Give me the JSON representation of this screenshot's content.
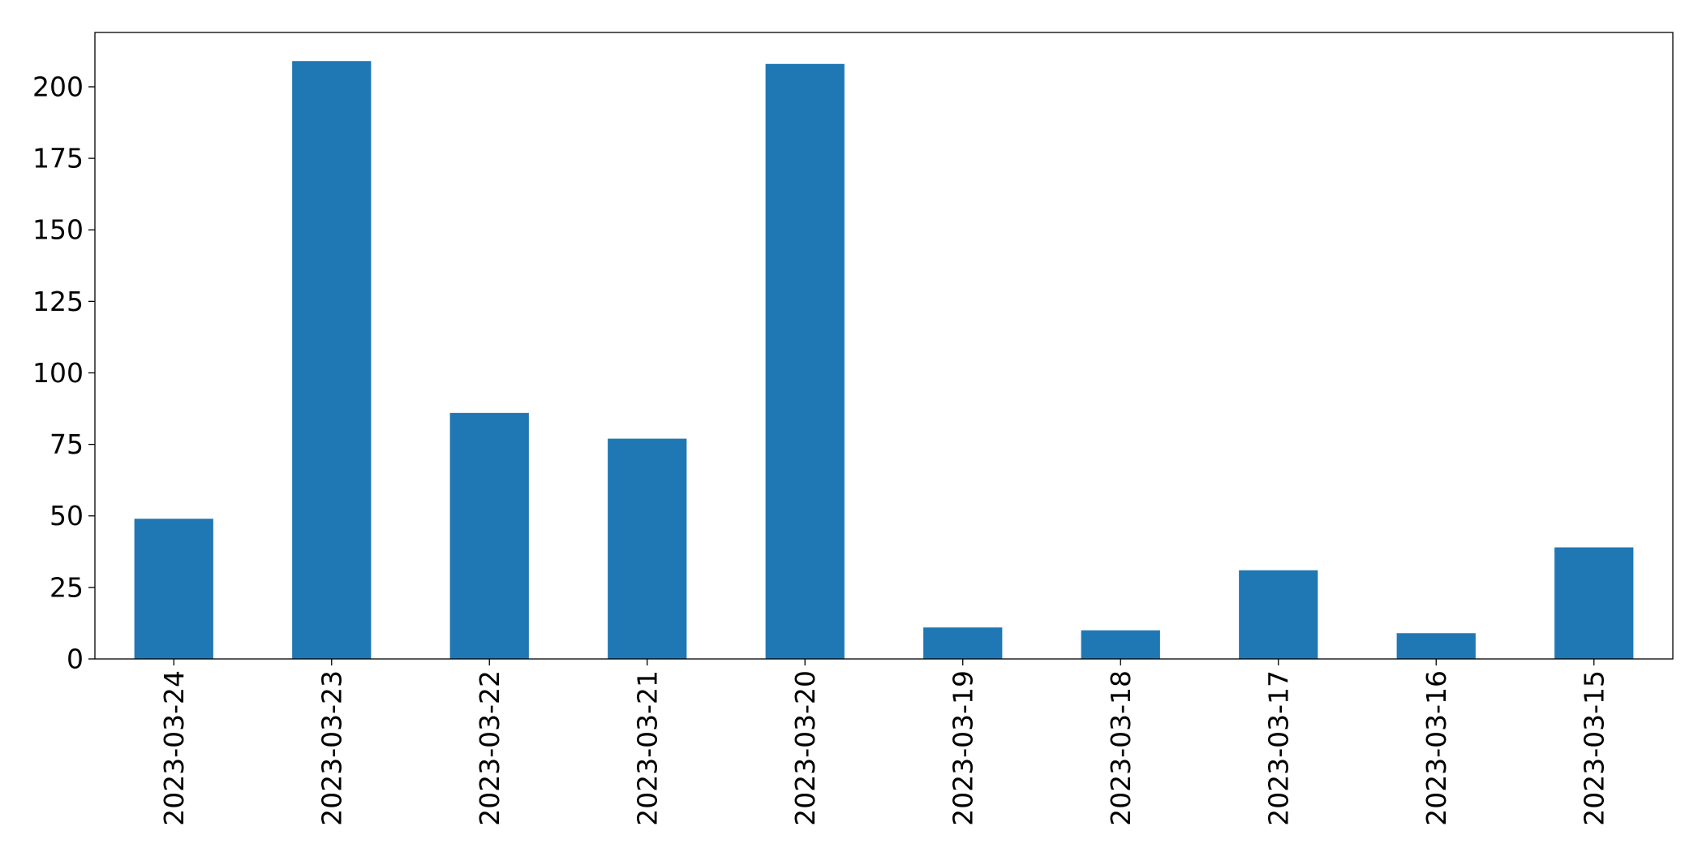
{
  "chart_data": {
    "type": "bar",
    "categories": [
      "2023-03-24",
      "2023-03-23",
      "2023-03-22",
      "2023-03-21",
      "2023-03-20",
      "2023-03-19",
      "2023-03-18",
      "2023-03-17",
      "2023-03-16",
      "2023-03-15"
    ],
    "values": [
      49,
      209,
      86,
      77,
      208,
      11,
      10,
      31,
      9,
      39
    ],
    "ylim": [
      0,
      219
    ],
    "yticks": [
      0,
      25,
      50,
      75,
      100,
      125,
      150,
      175,
      200
    ],
    "bar_color": "#1f77b4",
    "grid": false,
    "legend": "none",
    "xtick_rotation": "vertical"
  }
}
